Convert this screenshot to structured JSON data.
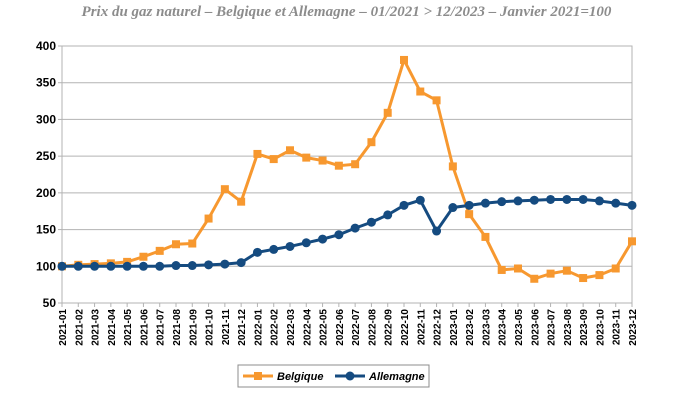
{
  "chart_data": {
    "type": "line",
    "title": "Prix du gaz naturel – Belgique et Allemagne – 01/2021 > 12/2023 – Janvier 2021=100",
    "xlabel": "",
    "ylabel": "",
    "ylim": [
      50,
      400
    ],
    "yticks": [
      50,
      100,
      150,
      200,
      250,
      300,
      350,
      400
    ],
    "grid": true,
    "legend_position": "bottom",
    "categories": [
      "2021-01",
      "2021-02",
      "2021-03",
      "2021-04",
      "2021-05",
      "2021-06",
      "2021-07",
      "2021-08",
      "2021-09",
      "2021-10",
      "2021-11",
      "2021-12",
      "2022-01",
      "2022-02",
      "2022-03",
      "2022-04",
      "2022-05",
      "2022-06",
      "2022-07",
      "2022-08",
      "2022-09",
      "2022-10",
      "2022-11",
      "2022-12",
      "2023-01",
      "2023-02",
      "2023-03",
      "2023-04",
      "2023-05",
      "2023-06",
      "2023-07",
      "2023-08",
      "2023-09",
      "2023-10",
      "2023-11",
      "2023-12"
    ],
    "series": [
      {
        "name": "Belgique",
        "color": "#f7982f",
        "marker": "square",
        "values": [
          100,
          102,
          103,
          104,
          106,
          113,
          121,
          130,
          131,
          165,
          205,
          188,
          253,
          246,
          258,
          248,
          244,
          237,
          239,
          269,
          309,
          381,
          338,
          326,
          236,
          171,
          140,
          95,
          97,
          83,
          90,
          94,
          84,
          88,
          97,
          134
        ]
      },
      {
        "name": "Allemagne",
        "color": "#154b80",
        "marker": "circle",
        "values": [
          100,
          100,
          100,
          100,
          100,
          100,
          100,
          101,
          101,
          102,
          103,
          105,
          119,
          123,
          127,
          132,
          137,
          143,
          152,
          160,
          170,
          183,
          190,
          148,
          180,
          183,
          186,
          188,
          189,
          190,
          191,
          191,
          191,
          189,
          186,
          183
        ]
      }
    ]
  }
}
